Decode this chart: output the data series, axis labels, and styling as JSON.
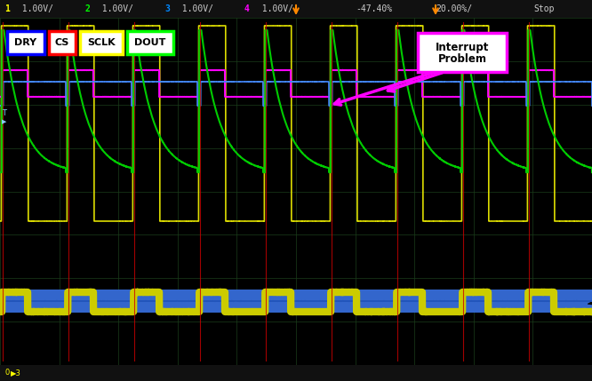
{
  "bg_color": "#000000",
  "header_bg": "#111111",
  "legend": [
    {
      "label": "DRY",
      "color": "#0000ff"
    },
    {
      "label": "CS",
      "color": "#ff0000"
    },
    {
      "label": "SCLK",
      "color": "#ffff00"
    },
    {
      "label": "DOUT",
      "color": "#00ff00"
    }
  ],
  "annotation": {
    "text": "Interrupt\nProblem",
    "box_color": "#ff00ff",
    "text_color": "#000000",
    "arrow_color": "#ff00ff"
  },
  "header_ch_colors": [
    "#ffff00",
    "#00ff00",
    "#0088ff",
    "#ff00ff"
  ],
  "header_labels": [
    "1  1.00V/",
    "2  1.00V/",
    "3  1.00V/",
    "4  1.00V/"
  ],
  "header_extra": [
    "-47.40%",
    "20.00%/",
    "Stop"
  ]
}
